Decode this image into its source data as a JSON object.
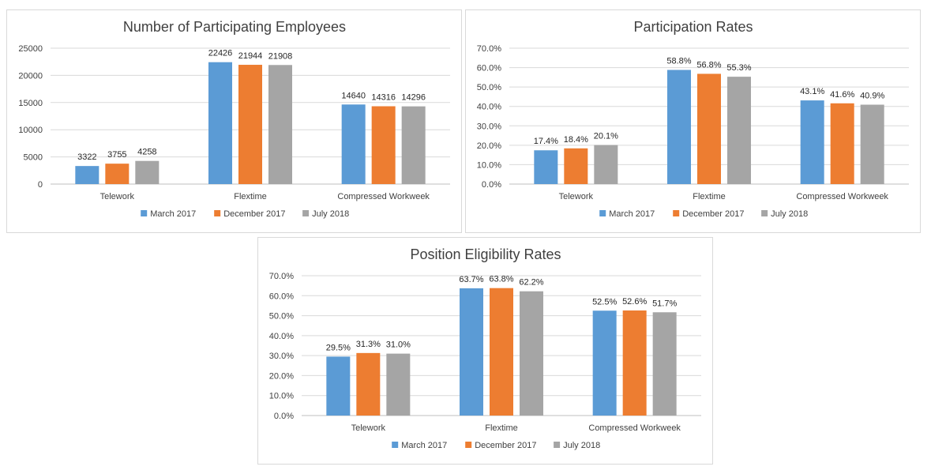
{
  "colors": {
    "March 2017": "#5b9bd5",
    "December 2017": "#ed7d31",
    "July 2018": "#a5a5a5"
  },
  "chart_data": [
    {
      "type": "bar",
      "title": "Number of Participating Employees",
      "categories": [
        "Telework",
        "Flextime",
        "Compressed Workweek"
      ],
      "series": [
        {
          "name": "March 2017",
          "values": [
            3322,
            22426,
            14640
          ]
        },
        {
          "name": "December 2017",
          "values": [
            3755,
            21944,
            14316
          ]
        },
        {
          "name": "July 2018",
          "values": [
            4258,
            21908,
            14296
          ]
        }
      ],
      "value_labels": [
        [
          "3322",
          "22426",
          "14640"
        ],
        [
          "3755",
          "21944",
          "14316"
        ],
        [
          "4258",
          "21908",
          "14296"
        ]
      ],
      "ylim": [
        0,
        25000
      ],
      "yticks": [
        "0",
        "5000",
        "10000",
        "15000",
        "20000",
        "25000"
      ],
      "grid": true,
      "legend": "bottom"
    },
    {
      "type": "bar",
      "title": "Participation Rates",
      "categories": [
        "Telework",
        "Flextime",
        "Compressed Workweek"
      ],
      "series": [
        {
          "name": "March 2017",
          "values": [
            17.4,
            58.8,
            43.1
          ]
        },
        {
          "name": "December 2017",
          "values": [
            18.4,
            56.8,
            41.6
          ]
        },
        {
          "name": "July 2018",
          "values": [
            20.1,
            55.3,
            40.9
          ]
        }
      ],
      "value_labels": [
        [
          "17.4%",
          "58.8%",
          "43.1%"
        ],
        [
          "18.4%",
          "56.8%",
          "41.6%"
        ],
        [
          "20.1%",
          "55.3%",
          "40.9%"
        ]
      ],
      "ylim": [
        0,
        70
      ],
      "yticks": [
        "0.0%",
        "10.0%",
        "20.0%",
        "30.0%",
        "40.0%",
        "50.0%",
        "60.0%",
        "70.0%"
      ],
      "grid": true,
      "legend": "bottom"
    },
    {
      "type": "bar",
      "title": "Position Eligibility Rates",
      "categories": [
        "Telework",
        "Flextime",
        "Compressed Workweek"
      ],
      "series": [
        {
          "name": "March 2017",
          "values": [
            29.5,
            63.7,
            52.5
          ]
        },
        {
          "name": "December 2017",
          "values": [
            31.3,
            63.8,
            52.6
          ]
        },
        {
          "name": "July 2018",
          "values": [
            31.0,
            62.2,
            51.7
          ]
        }
      ],
      "value_labels": [
        [
          "29.5%",
          "63.7%",
          "52.5%"
        ],
        [
          "31.3%",
          "63.8%",
          "52.6%"
        ],
        [
          "31.0%",
          "62.2%",
          "51.7%"
        ]
      ],
      "ylim": [
        0,
        70
      ],
      "yticks": [
        "0.0%",
        "10.0%",
        "20.0%",
        "30.0%",
        "40.0%",
        "50.0%",
        "60.0%",
        "70.0%"
      ],
      "grid": true,
      "legend": "bottom"
    }
  ]
}
